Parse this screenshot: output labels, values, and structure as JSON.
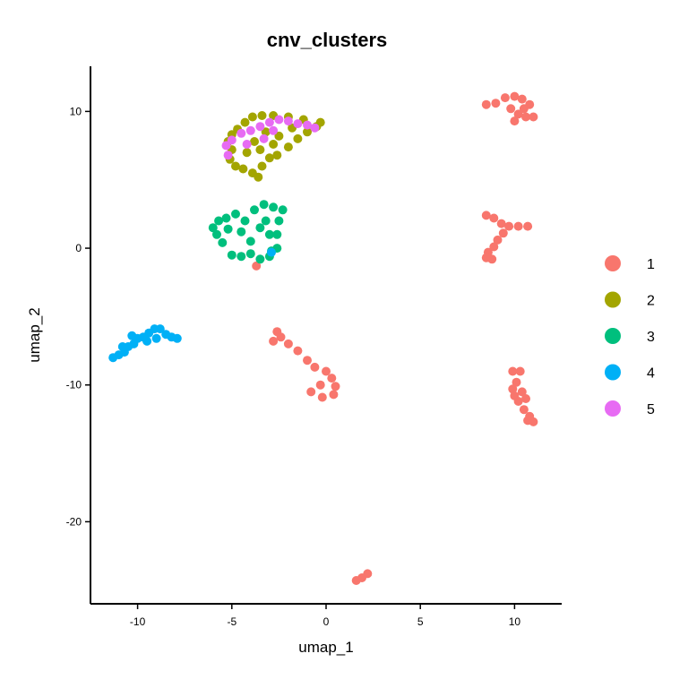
{
  "chart_data": {
    "type": "scatter",
    "title": "cnv_clusters",
    "xlabel": "umap_1",
    "ylabel": "umap_2",
    "xlim": [
      -12.5,
      12.5
    ],
    "ylim": [
      -26,
      13.3
    ],
    "x_ticks": [
      -10,
      -5,
      0,
      5,
      10
    ],
    "y_ticks": [
      -20,
      -10,
      0,
      10
    ],
    "grid": false,
    "legend": {
      "placement": "right",
      "title": ""
    },
    "series": [
      {
        "name": "1",
        "color": "#F8766D",
        "points": [
          [
            8.5,
            10.5
          ],
          [
            9.0,
            10.6
          ],
          [
            9.5,
            11.0
          ],
          [
            10.0,
            11.1
          ],
          [
            10.4,
            10.9
          ],
          [
            10.8,
            10.5
          ],
          [
            9.8,
            10.2
          ],
          [
            10.2,
            9.8
          ],
          [
            10.6,
            9.6
          ],
          [
            11.0,
            9.6
          ],
          [
            10.0,
            9.3
          ],
          [
            10.5,
            10.2
          ],
          [
            8.5,
            2.4
          ],
          [
            8.9,
            2.2
          ],
          [
            9.3,
            1.8
          ],
          [
            9.7,
            1.6
          ],
          [
            10.2,
            1.6
          ],
          [
            10.7,
            1.6
          ],
          [
            9.4,
            1.1
          ],
          [
            9.1,
            0.6
          ],
          [
            8.9,
            0.1
          ],
          [
            8.6,
            -0.3
          ],
          [
            8.8,
            -0.8
          ],
          [
            8.5,
            -0.7
          ],
          [
            -2.6,
            -6.1
          ],
          [
            -2.4,
            -6.5
          ],
          [
            -2.0,
            -7.0
          ],
          [
            -1.5,
            -7.5
          ],
          [
            -1.0,
            -8.2
          ],
          [
            -0.6,
            -8.7
          ],
          [
            0.0,
            -9.0
          ],
          [
            0.3,
            -9.5
          ],
          [
            0.5,
            -10.1
          ],
          [
            0.4,
            -10.7
          ],
          [
            -0.2,
            -10.9
          ],
          [
            -0.8,
            -10.5
          ],
          [
            -0.3,
            -10.0
          ],
          [
            -2.8,
            -6.8
          ],
          [
            9.9,
            -9.0
          ],
          [
            10.3,
            -9.0
          ],
          [
            10.1,
            -9.8
          ],
          [
            9.9,
            -10.3
          ],
          [
            10.4,
            -10.5
          ],
          [
            10.2,
            -11.2
          ],
          [
            10.6,
            -11.0
          ],
          [
            10.5,
            -11.8
          ],
          [
            10.8,
            -12.3
          ],
          [
            11.0,
            -12.7
          ],
          [
            10.7,
            -12.6
          ],
          [
            10.0,
            -10.8
          ],
          [
            1.6,
            -24.3
          ],
          [
            1.9,
            -24.1
          ],
          [
            2.2,
            -23.8
          ],
          [
            -3.7,
            -1.3
          ]
        ]
      },
      {
        "name": "2",
        "color": "#A3A500",
        "points": [
          [
            -5.2,
            7.8
          ],
          [
            -5.0,
            7.2
          ],
          [
            -5.1,
            6.5
          ],
          [
            -4.8,
            6.0
          ],
          [
            -4.4,
            5.8
          ],
          [
            -3.9,
            5.5
          ],
          [
            -3.4,
            6.0
          ],
          [
            -3.0,
            6.6
          ],
          [
            -2.6,
            6.8
          ],
          [
            -2.0,
            7.4
          ],
          [
            -1.5,
            8.0
          ],
          [
            -1.0,
            8.5
          ],
          [
            -0.5,
            8.9
          ],
          [
            -0.3,
            9.2
          ],
          [
            -1.2,
            9.4
          ],
          [
            -2.0,
            9.6
          ],
          [
            -2.8,
            9.7
          ],
          [
            -3.4,
            9.7
          ],
          [
            -3.9,
            9.6
          ],
          [
            -4.3,
            9.2
          ],
          [
            -4.7,
            8.7
          ],
          [
            -5.0,
            8.3
          ],
          [
            -3.2,
            8.5
          ],
          [
            -2.5,
            8.2
          ],
          [
            -3.8,
            7.8
          ],
          [
            -4.2,
            7.0
          ],
          [
            -3.5,
            7.2
          ],
          [
            -2.8,
            7.6
          ],
          [
            -1.8,
            8.8
          ],
          [
            -3.6,
            5.2
          ]
        ]
      },
      {
        "name": "3",
        "color": "#00BF7D",
        "points": [
          [
            -6.0,
            1.5
          ],
          [
            -5.7,
            2.0
          ],
          [
            -5.3,
            2.2
          ],
          [
            -4.8,
            2.5
          ],
          [
            -4.3,
            2.0
          ],
          [
            -3.8,
            2.8
          ],
          [
            -3.3,
            3.2
          ],
          [
            -2.8,
            3.0
          ],
          [
            -2.3,
            2.8
          ],
          [
            -2.5,
            2.0
          ],
          [
            -2.6,
            1.0
          ],
          [
            -2.6,
            0.0
          ],
          [
            -3.0,
            -0.6
          ],
          [
            -3.5,
            -0.8
          ],
          [
            -4.0,
            -0.4
          ],
          [
            -4.5,
            -0.6
          ],
          [
            -5.0,
            -0.5
          ],
          [
            -5.5,
            0.4
          ],
          [
            -5.8,
            1.0
          ],
          [
            -4.5,
            1.2
          ],
          [
            -3.5,
            1.5
          ],
          [
            -4.0,
            0.5
          ],
          [
            -3.2,
            2.0
          ],
          [
            -5.2,
            1.4
          ],
          [
            -3.0,
            1.0
          ],
          [
            -2.9,
            -0.2
          ]
        ]
      },
      {
        "name": "4",
        "color": "#00B0F6",
        "points": [
          [
            -11.3,
            -8.0
          ],
          [
            -11.0,
            -7.8
          ],
          [
            -10.7,
            -7.6
          ],
          [
            -10.5,
            -7.2
          ],
          [
            -10.2,
            -7.0
          ],
          [
            -10.0,
            -6.6
          ],
          [
            -9.7,
            -6.5
          ],
          [
            -9.4,
            -6.2
          ],
          [
            -9.1,
            -5.9
          ],
          [
            -8.8,
            -5.9
          ],
          [
            -8.5,
            -6.3
          ],
          [
            -8.2,
            -6.5
          ],
          [
            -7.9,
            -6.6
          ],
          [
            -9.5,
            -6.8
          ],
          [
            -10.3,
            -6.4
          ],
          [
            -10.8,
            -7.2
          ],
          [
            -9.0,
            -6.6
          ],
          [
            -2.9,
            -0.3
          ]
        ]
      },
      {
        "name": "5",
        "color": "#E76BF3",
        "points": [
          [
            -5.3,
            7.5
          ],
          [
            -5.0,
            7.9
          ],
          [
            -4.5,
            8.4
          ],
          [
            -4.0,
            8.6
          ],
          [
            -3.5,
            8.9
          ],
          [
            -3.0,
            9.2
          ],
          [
            -2.5,
            9.4
          ],
          [
            -2.0,
            9.3
          ],
          [
            -1.5,
            9.1
          ],
          [
            -1.0,
            9.0
          ],
          [
            -0.6,
            8.8
          ],
          [
            -3.3,
            8.0
          ],
          [
            -4.2,
            7.6
          ],
          [
            -2.8,
            8.6
          ],
          [
            -5.2,
            6.8
          ]
        ]
      }
    ]
  }
}
